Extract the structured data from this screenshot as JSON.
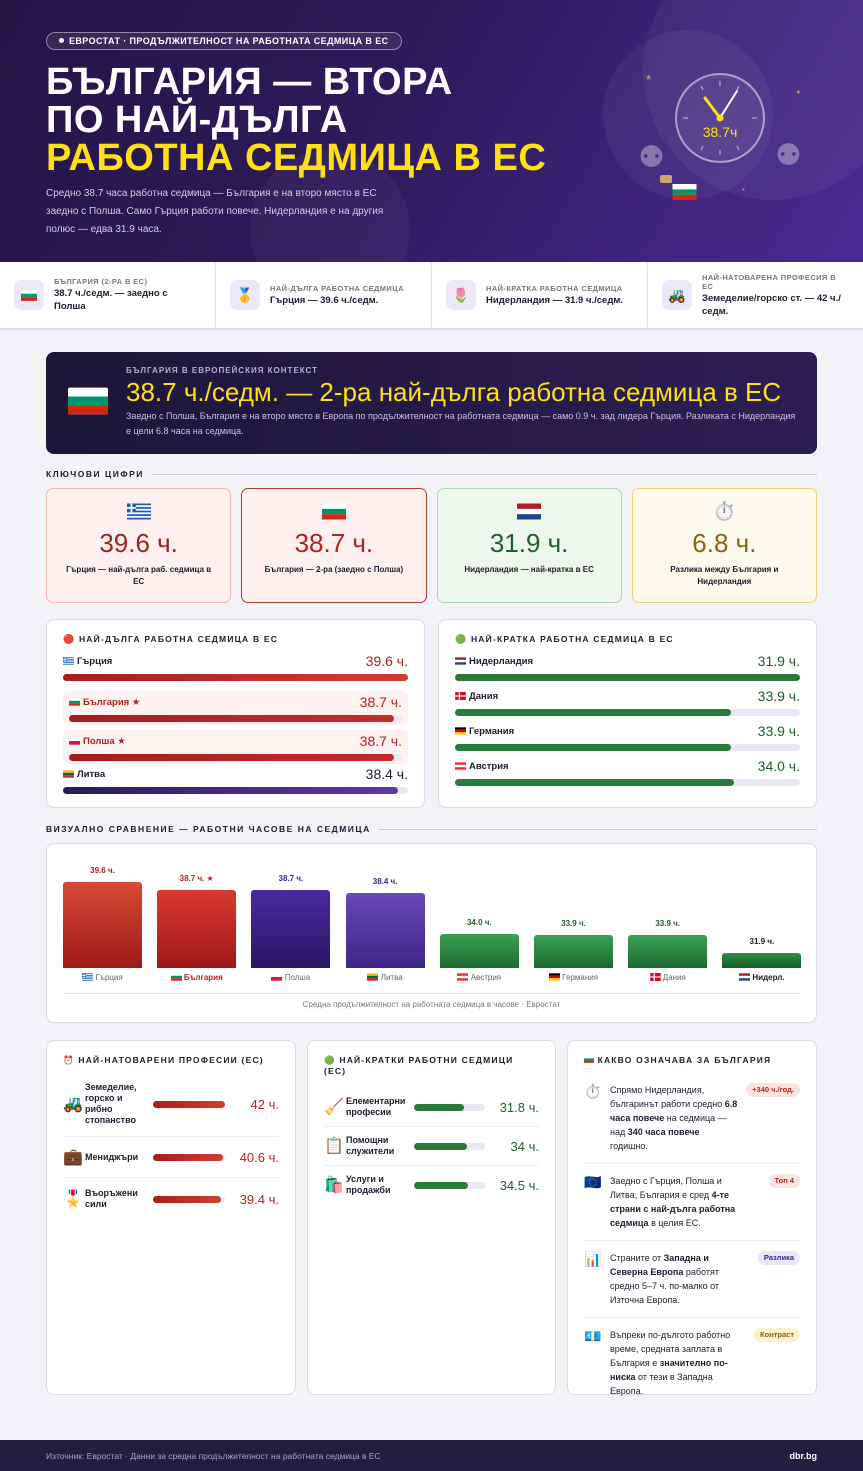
{
  "hero": {
    "badge": "ЕВРОСТАТ · ПРОДЪЛЖИТЕЛНОСТ НА РАБОТНАТА СЕДМИЦА В ЕС",
    "title_line1": "БЪЛГАРИЯ — ВТОРА",
    "title_line2": "ПО НАЙ-ДЪЛГА",
    "title_line3": "РАБОТНА СЕДМИЦА В ЕС",
    "subtitle": "Средно 38.7 часа работна седмица — България е на второ място в ЕС заедно с Полша. Само Гърция работи повече. Нидерландия е на другия полюс — едва 31.9 часа.",
    "clock_value": "38.7ч"
  },
  "stats": [
    {
      "icon": "bulgaria-flag",
      "label": "БЪЛГАРИЯ (2-РА В ЕС)",
      "value": "38.7 ч./седм. — заедно с Полша"
    },
    {
      "icon": "gold-medal-icon",
      "label": "НАЙ-ДЪЛГА РАБОТНА СЕДМИЦА",
      "value": "Гърция — 39.6 ч./седм."
    },
    {
      "icon": "tulip-icon",
      "label": "НАЙ-КРАТКА РАБОТНА СЕДМИЦА",
      "value": "Нидерландия — 31.9 ч./седм."
    },
    {
      "icon": "tractor-icon",
      "label": "НАЙ-НАТОВАРЕНА ПРОФЕСИЯ В ЕС",
      "value": "Земеделие/горско ст. — 42 ч./седм."
    }
  ],
  "context": {
    "label": "БЪЛГАРИЯ В ЕВРОПЕЙСКИЯ КОНТЕКСТ",
    "headline": "38.7 ч./седм. — 2-ра най-дълга работна седмица в ЕС",
    "text": "Заедно с Полша, България е на второ място в Европа по продължителност на работната седмица — само 0.9 ч. зад лидера Гърция. Разликата с Нидерландия е цели 6.8 часа на седмица."
  },
  "sections": {
    "key_figures": "КЛЮЧОВИ ЦИФРИ",
    "visual": "ВИЗУАЛНО СРАВНЕНИЕ — РАБОТНИ ЧАСОВЕ НА СЕДМИЦА"
  },
  "kpis": [
    {
      "value": "39.6 ч.",
      "text": "Гърция — най-дълга раб. седмица в ЕС"
    },
    {
      "value": "38.7 ч.",
      "text": "България — 2-ра (заедно с Полша)"
    },
    {
      "value": "31.9 ч.",
      "text": "Нидерландия — най-кратка в ЕС"
    },
    {
      "value": "6.8 ч.",
      "text": "Разлика между България и Нидерландия"
    }
  ],
  "longest": {
    "title": "НАЙ-ДЪЛГА РАБОТНА СЕДМИЦА В ЕС",
    "items": [
      {
        "name": "Гърция",
        "value": "39.6 ч.",
        "hours": 39.6
      },
      {
        "name": "България ★",
        "value": "38.7 ч.",
        "hours": 38.7
      },
      {
        "name": "Полша ★",
        "value": "38.7 ч.",
        "hours": 38.7
      },
      {
        "name": "Литва",
        "value": "38.4 ч.",
        "hours": 38.4
      }
    ]
  },
  "shortest": {
    "title": "НАЙ-КРАТКА РАБОТНА СЕДМИЦА В ЕС",
    "items": [
      {
        "name": "Нидерландия",
        "value": "31.9 ч.",
        "hours": 31.9
      },
      {
        "name": "Дания",
        "value": "33.9 ч.",
        "hours": 33.9
      },
      {
        "name": "Германия",
        "value": "33.9 ч.",
        "hours": 33.9
      },
      {
        "name": "Австрия",
        "value": "34.0 ч.",
        "hours": 34.0
      }
    ]
  },
  "chart_data": {
    "type": "bar",
    "categories": [
      "Гърция",
      "България",
      "Полша",
      "Литва",
      "Австрия",
      "Германия",
      "Дания",
      "Нидерл."
    ],
    "values": [
      39.6,
      38.7,
      38.7,
      38.4,
      34.0,
      33.9,
      33.9,
      31.9
    ],
    "value_labels": [
      "39.6 ч.",
      "38.7 ч. ★",
      "38.7 ч.",
      "38.4 ч.",
      "34.0 ч.",
      "33.9 ч.",
      "33.9 ч.",
      "31.9 ч."
    ],
    "caption": "Средна продължителност на работната седмица в часове · Евростат"
  },
  "professions_long": {
    "title": "НАЙ-НАТОВАРЕНИ ПРОФЕСИИ (ЕС)",
    "items": [
      {
        "icon": "tractor-icon",
        "name": "Земеделие, горско и рибно стопанство",
        "value": "42 ч.",
        "hours": 42
      },
      {
        "icon": "briefcase-icon",
        "name": "Мениджъри",
        "value": "40.6 ч.",
        "hours": 40.6
      },
      {
        "icon": "military-medal-icon",
        "name": "Въоръжени сили",
        "value": "39.4 ч.",
        "hours": 39.4
      }
    ]
  },
  "professions_short": {
    "title": "НАЙ-КРАТКИ РАБОТНИ СЕДМИЦИ (ЕС)",
    "items": [
      {
        "icon": "broom-icon",
        "name": "Елементарни професии",
        "value": "31.8 ч.",
        "hours": 31.8
      },
      {
        "icon": "clipboard-icon",
        "name": "Помощни служители",
        "value": "34 ч.",
        "hours": 34
      },
      {
        "icon": "shopping-bags-icon",
        "name": "Услуги и продажби",
        "value": "34.5 ч.",
        "hours": 34.5
      }
    ]
  },
  "meaning": {
    "title": "КАКВО ОЗНАЧАВА ЗА БЪЛГАРИЯ",
    "items": [
      {
        "icon": "stopwatch-icon",
        "parts": [
          [
            "Спрямо Нидерландия, българинът работи средно ",
            false
          ],
          [
            "6.8 часа повече",
            true
          ],
          [
            " на седмица — над ",
            false
          ],
          [
            "340 часа повече",
            true
          ],
          [
            " годишно.",
            false
          ]
        ],
        "badge": "+340 ч./год."
      },
      {
        "icon": "eu-flag-icon",
        "parts": [
          [
            "Заедно с Гърция, Полша и Литва, България е сред ",
            false
          ],
          [
            "4-те страни с най-дълга работна седмица",
            true
          ],
          [
            " в целия ЕС.",
            false
          ]
        ],
        "badge": "Топ 4"
      },
      {
        "icon": "bar-chart-icon",
        "parts": [
          [
            "Страните от ",
            false
          ],
          [
            "Западна и Северна Европа",
            true
          ],
          [
            " работят средно 5–7 ч. по-малко от Източна Европа.",
            false
          ]
        ],
        "badge": "Разлика"
      },
      {
        "icon": "banknote-icon",
        "parts": [
          [
            "Въпреки по-дългото работно време, средната заплата в България е ",
            false
          ],
          [
            "значително по-ниска",
            true
          ],
          [
            " от тези в Западна Европа.",
            false
          ]
        ],
        "badge": "Контраст"
      }
    ]
  },
  "footer": {
    "source": "Източник: Евростат · Данни за средна продължителност на работната седмица в ЕС",
    "brand": "dbr.bg"
  },
  "colors": {
    "accent_yellow": "#ffe014",
    "hero_purple": "#2e1a5c",
    "red": "#b4221f",
    "green": "#2a7a3b",
    "purple": "#3b2686"
  }
}
